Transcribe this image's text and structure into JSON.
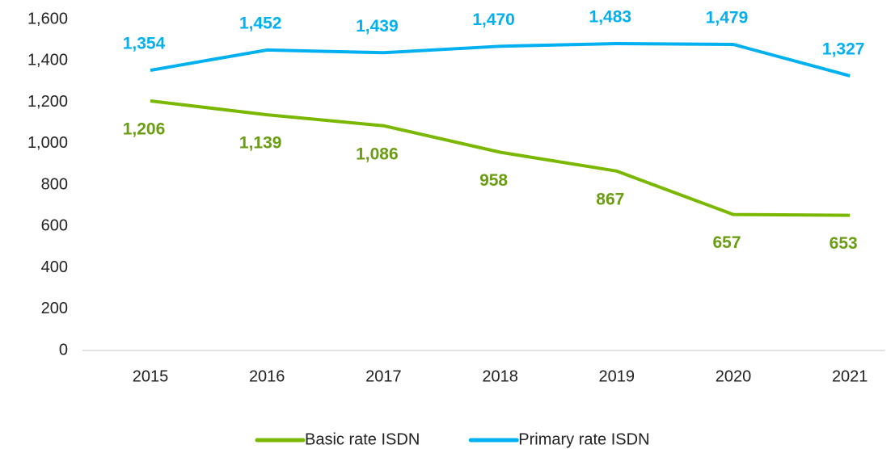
{
  "chart_data": {
    "type": "line",
    "categories": [
      "2015",
      "2016",
      "2017",
      "2018",
      "2019",
      "2020",
      "2021"
    ],
    "series": [
      {
        "name": "Basic rate ISDN",
        "color": "#7ab800",
        "label_color": "#6a9d12",
        "values": [
          1206,
          1139,
          1086,
          958,
          867,
          657,
          653
        ],
        "value_labels": [
          "1,206",
          "1,139",
          "1,086",
          "958",
          "867",
          "657",
          "653"
        ]
      },
      {
        "name": "Primary rate ISDN",
        "color": "#00b0f0",
        "label_color": "#00b0f0",
        "values": [
          1354,
          1452,
          1439,
          1470,
          1483,
          1479,
          1327
        ],
        "value_labels": [
          "1,354",
          "1,452",
          "1,439",
          "1,470",
          "1,483",
          "1,479",
          "1,327"
        ]
      }
    ],
    "ylim": [
      0,
      1600
    ],
    "yticks": [
      0,
      200,
      400,
      600,
      800,
      {
        "value": 1000,
        "label": "1,000"
      },
      {
        "value": 1200,
        "label": "1,200"
      },
      {
        "value": 1400,
        "label": "1,400"
      },
      {
        "value": 1600,
        "label": "1,600"
      }
    ],
    "grid": false,
    "legend": "bottom"
  }
}
